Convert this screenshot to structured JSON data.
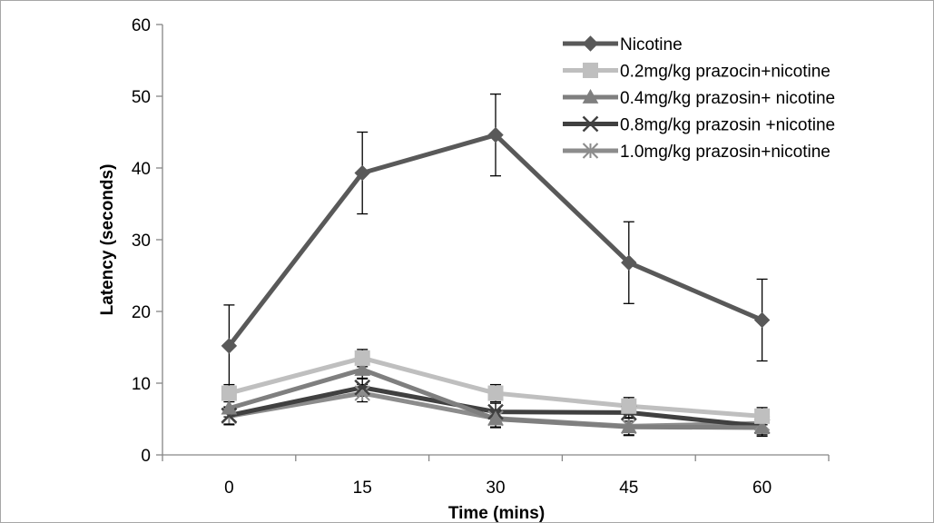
{
  "chart_data": {
    "type": "line",
    "title": "",
    "xlabel": "Time (mins)",
    "ylabel": "Latency (seconds)",
    "x": [
      0,
      15,
      30,
      45,
      60
    ],
    "ylim": [
      0,
      60
    ],
    "yticks": [
      0,
      10,
      20,
      30,
      40,
      50,
      60
    ],
    "grid": false,
    "legend_position": "top-right",
    "series": [
      {
        "name": "Nicotine",
        "values": [
          15.2,
          39.3,
          44.6,
          26.8,
          18.8
        ],
        "errors": [
          5.7,
          5.7,
          5.7,
          5.7,
          5.7
        ],
        "marker": "diamond",
        "color": "#595959"
      },
      {
        "name": "0.2mg/kg prazocin+nicotine",
        "values": [
          8.6,
          13.5,
          8.6,
          6.8,
          5.4
        ],
        "errors": [
          1.2,
          1.2,
          1.2,
          1.2,
          1.2
        ],
        "marker": "square",
        "color": "#bfbfbf"
      },
      {
        "name": "0.4mg/kg prazosin+ nicotine",
        "values": [
          6.5,
          11.9,
          5.0,
          3.9,
          3.8
        ],
        "errors": [
          1.2,
          1.2,
          1.2,
          1.2,
          1.2
        ],
        "marker": "triangle",
        "color": "#7f7f7f"
      },
      {
        "name": "0.8mg/kg prazosin +nicotine",
        "values": [
          5.5,
          9.4,
          6.0,
          5.9,
          4.0
        ],
        "errors": [
          1.2,
          1.2,
          1.2,
          1.2,
          1.2
        ],
        "marker": "x",
        "color": "#404040"
      },
      {
        "name": "1.0mg/kg prazosin+nicotine",
        "values": [
          5.4,
          8.6,
          5.1,
          4.0,
          4.4
        ],
        "errors": [
          1.2,
          1.2,
          1.2,
          1.2,
          1.2
        ],
        "marker": "asterisk",
        "color": "#8c8c8c"
      }
    ]
  }
}
